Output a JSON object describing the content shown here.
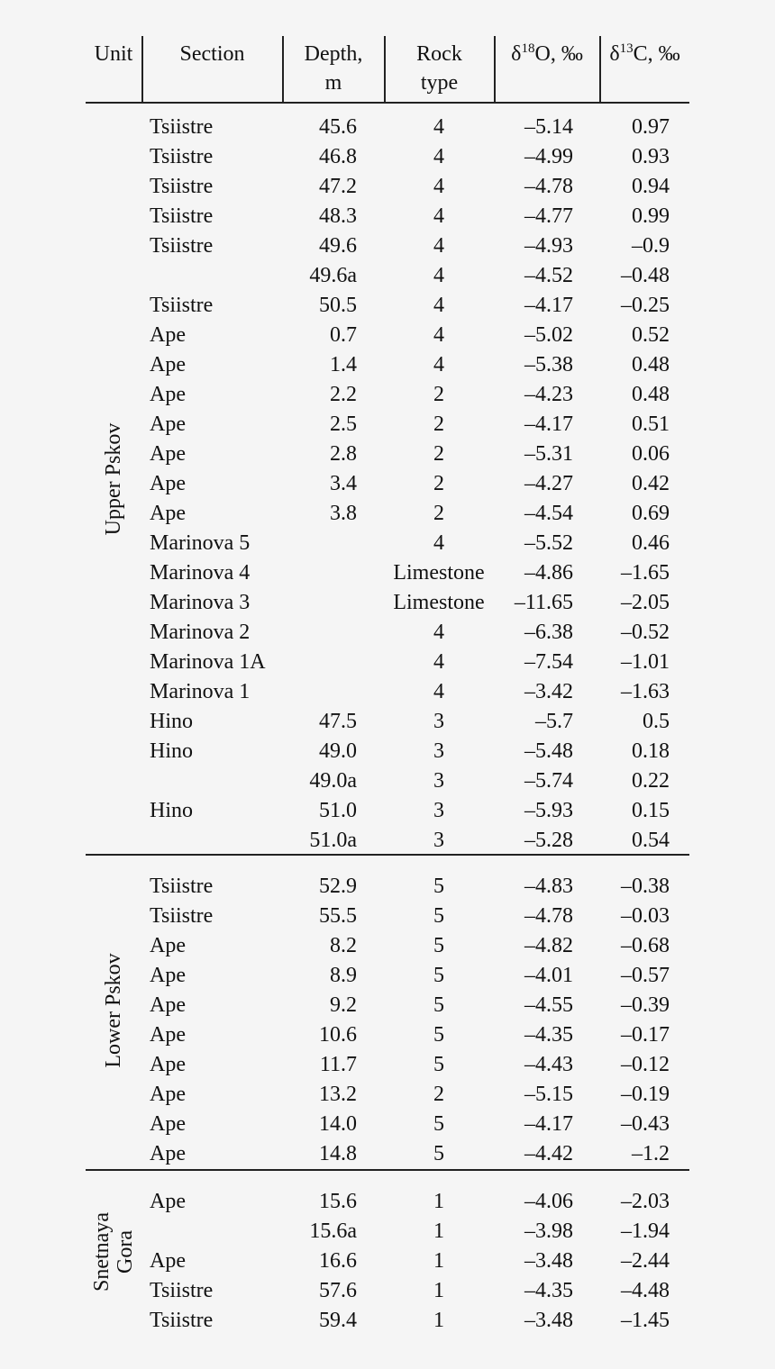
{
  "header": {
    "unit": "Unit",
    "section": "Section",
    "depth_line1": "Depth,",
    "depth_line2": "m",
    "rock_line1": "Rock",
    "rock_line2": "type",
    "d18_delta": "δ",
    "d18_sup": "18",
    "d18_rest": "O, ‰",
    "d13_delta": "δ",
    "d13_sup": "13",
    "d13_rest": "C, ‰"
  },
  "units": {
    "upper": "Upper Pskov",
    "lower": "Lower Pskov",
    "snet_line1": "Snetnaya",
    "snet_line2": "Gora"
  },
  "rows": [
    [
      "Tsiistre",
      "45.6",
      "4",
      "–5.14",
      "0.97"
    ],
    [
      "Tsiistre",
      "46.8",
      "4",
      "–4.99",
      "0.93"
    ],
    [
      "Tsiistre",
      "47.2",
      "4",
      "–4.78",
      "0.94"
    ],
    [
      "Tsiistre",
      "48.3",
      "4",
      "–4.77",
      "0.99"
    ],
    [
      "Tsiistre",
      "49.6",
      "4",
      "–4.93",
      "–0.9"
    ],
    [
      "",
      "49.6a",
      "4",
      "–4.52",
      "–0.48"
    ],
    [
      "Tsiistre",
      "50.5",
      "4",
      "–4.17",
      "–0.25"
    ],
    [
      "Ape",
      "0.7",
      "4",
      "–5.02",
      "0.52"
    ],
    [
      "Ape",
      "1.4",
      "4",
      "–5.38",
      "0.48"
    ],
    [
      "Ape",
      "2.2",
      "2",
      "–4.23",
      "0.48"
    ],
    [
      "Ape",
      "2.5",
      "2",
      "–4.17",
      "0.51"
    ],
    [
      "Ape",
      "2.8",
      "2",
      "–5.31",
      "0.06"
    ],
    [
      "Ape",
      "3.4",
      "2",
      "–4.27",
      "0.42"
    ],
    [
      "Ape",
      "3.8",
      "2",
      "–4.54",
      "0.69"
    ],
    [
      "Marinova 5",
      "",
      "4",
      "–5.52",
      "0.46"
    ],
    [
      "Marinova 4",
      "",
      "Limestone",
      "–4.86",
      "–1.65"
    ],
    [
      "Marinova 3",
      "",
      "Limestone",
      "–11.65",
      "–2.05"
    ],
    [
      "Marinova 2",
      "",
      "4",
      "–6.38",
      "–0.52"
    ],
    [
      "Marinova 1A",
      "",
      "4",
      "–7.54",
      "–1.01"
    ],
    [
      "Marinova 1",
      "",
      "4",
      "–3.42",
      "–1.63"
    ],
    [
      "Hino",
      "47.5",
      "3",
      "–5.7",
      "0.5"
    ],
    [
      "Hino",
      "49.0",
      "3",
      "–5.48",
      "0.18"
    ],
    [
      "",
      "49.0a",
      "3",
      "–5.74",
      "0.22"
    ],
    [
      "Hino",
      "51.0",
      "3",
      "–5.93",
      "0.15"
    ],
    [
      "",
      "51.0a",
      "3",
      "–5.28",
      "0.54"
    ],
    [
      "Tsiistre",
      "52.9",
      "5",
      "–4.83",
      "–0.38"
    ],
    [
      "Tsiistre",
      "55.5",
      "5",
      "–4.78",
      "–0.03"
    ],
    [
      "Ape",
      "8.2",
      "5",
      "–4.82",
      "–0.68"
    ],
    [
      "Ape",
      "8.9",
      "5",
      "–4.01",
      "–0.57"
    ],
    [
      "Ape",
      "9.2",
      "5",
      "–4.55",
      "–0.39"
    ],
    [
      "Ape",
      "10.6",
      "5",
      "–4.35",
      "–0.17"
    ],
    [
      "Ape",
      "11.7",
      "5",
      "–4.43",
      "–0.12"
    ],
    [
      "Ape",
      "13.2",
      "2",
      "–5.15",
      "–0.19"
    ],
    [
      "Ape",
      "14.0",
      "5",
      "–4.17",
      "–0.43"
    ],
    [
      "Ape",
      "14.8",
      "5",
      "–4.42",
      "–1.2"
    ],
    [
      "Ape",
      "15.6",
      "1",
      "–4.06",
      "–2.03"
    ],
    [
      "",
      "15.6a",
      "1",
      "–3.98",
      "–1.94"
    ],
    [
      "Ape",
      "16.6",
      "1",
      "–3.48",
      "–2.44"
    ],
    [
      "Tsiistre",
      "57.6",
      "1",
      "–4.35",
      "–4.48"
    ],
    [
      "Tsiistre",
      "59.4",
      "1",
      "–3.48",
      "–1.45"
    ]
  ]
}
